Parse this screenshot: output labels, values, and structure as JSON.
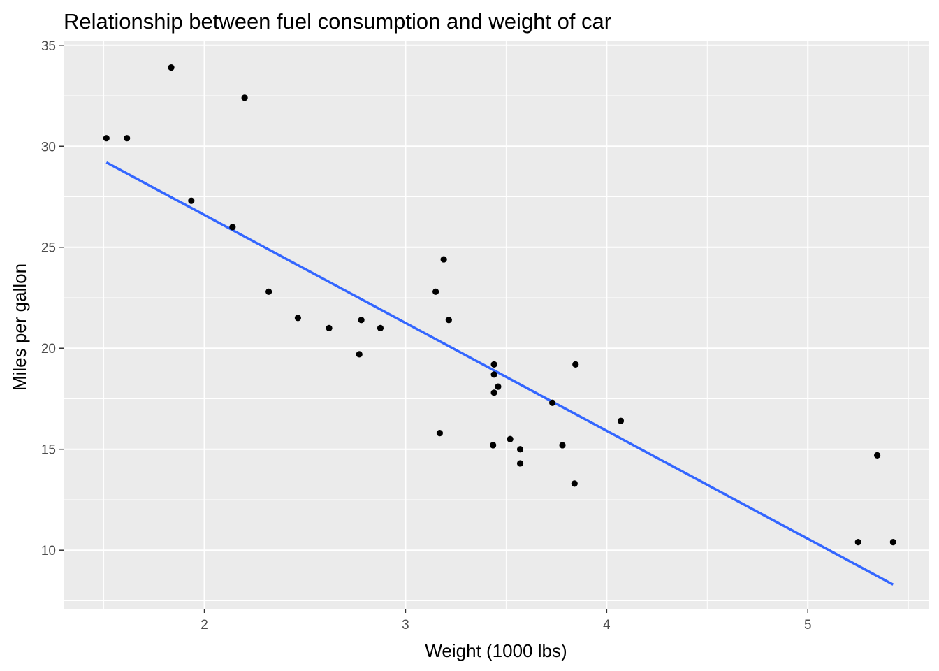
{
  "chart_data": {
    "type": "scatter",
    "title": "Relationship between fuel consumption and weight of car",
    "xlabel": "Weight (1000 lbs)",
    "ylabel": "Miles per gallon",
    "xlim": [
      1.3,
      5.6
    ],
    "ylim": [
      7.1,
      35.2
    ],
    "xticks": [
      2,
      3,
      4,
      5
    ],
    "xtick_labels": [
      "2",
      "3",
      "4",
      "5"
    ],
    "yticks": [
      10,
      15,
      20,
      25,
      30,
      35
    ],
    "ytick_labels": [
      "10",
      "15",
      "20",
      "25",
      "30",
      "35"
    ],
    "grid": true,
    "background": "#ebebeb",
    "point_color": "#000000",
    "line_color": "#3366ff",
    "points": [
      {
        "x": 2.62,
        "y": 21.0
      },
      {
        "x": 2.875,
        "y": 21.0
      },
      {
        "x": 2.32,
        "y": 22.8
      },
      {
        "x": 3.215,
        "y": 21.4
      },
      {
        "x": 3.44,
        "y": 18.7
      },
      {
        "x": 3.46,
        "y": 18.1
      },
      {
        "x": 3.57,
        "y": 14.3
      },
      {
        "x": 3.19,
        "y": 24.4
      },
      {
        "x": 3.15,
        "y": 22.8
      },
      {
        "x": 3.44,
        "y": 19.2
      },
      {
        "x": 3.44,
        "y": 17.8
      },
      {
        "x": 4.07,
        "y": 16.4
      },
      {
        "x": 3.73,
        "y": 17.3
      },
      {
        "x": 3.78,
        "y": 15.2
      },
      {
        "x": 5.25,
        "y": 10.4
      },
      {
        "x": 5.424,
        "y": 10.4
      },
      {
        "x": 5.345,
        "y": 14.7
      },
      {
        "x": 2.2,
        "y": 32.4
      },
      {
        "x": 1.615,
        "y": 30.4
      },
      {
        "x": 1.835,
        "y": 33.9
      },
      {
        "x": 2.465,
        "y": 21.5
      },
      {
        "x": 3.52,
        "y": 15.5
      },
      {
        "x": 3.435,
        "y": 15.2
      },
      {
        "x": 3.84,
        "y": 13.3
      },
      {
        "x": 3.845,
        "y": 19.2
      },
      {
        "x": 1.935,
        "y": 27.3
      },
      {
        "x": 2.14,
        "y": 26.0
      },
      {
        "x": 1.513,
        "y": 30.4
      },
      {
        "x": 3.17,
        "y": 15.8
      },
      {
        "x": 2.77,
        "y": 19.7
      },
      {
        "x": 3.57,
        "y": 15.0
      },
      {
        "x": 2.78,
        "y": 21.4
      }
    ],
    "trend_line": {
      "type": "linear",
      "x": [
        1.513,
        5.424
      ],
      "y": [
        29.2,
        8.3
      ]
    }
  }
}
